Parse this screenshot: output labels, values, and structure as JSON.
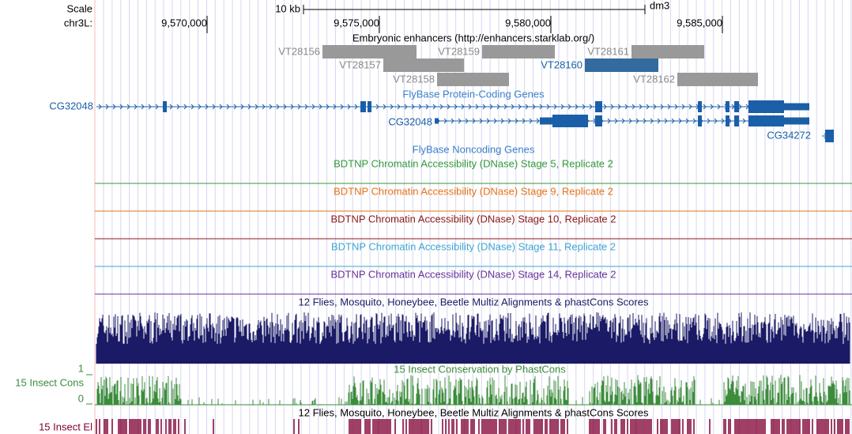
{
  "ruler": {
    "scale_label": "Scale",
    "scale_bar": "10 kb",
    "assembly": "dm3",
    "chrom_label": "chr3L:",
    "positions": [
      "9,570,000",
      "9,575,000",
      "9,580,000",
      "9,585,000"
    ]
  },
  "enhancers": {
    "title": "Embryonic enhancers (http://enhancers.starklab.org/)",
    "items": [
      "VT28156",
      "VT28157",
      "VT28158",
      "VT28159",
      "VT28160",
      "VT28161",
      "VT28162"
    ]
  },
  "genes": {
    "title": "FlyBase Protein-Coding Genes",
    "labels": [
      "CG32048",
      "CG32048",
      "CG34272"
    ]
  },
  "noncoding": {
    "title": "FlyBase Noncoding Genes"
  },
  "dnase": {
    "titles": [
      "BDTNP Chromatin Accessibility (DNase) Stage 5, Replicate 2",
      "BDTNP Chromatin Accessibility (DNase) Stage 9, Replicate 2",
      "BDTNP Chromatin Accessibility (DNase) Stage 10, Replicate 2",
      "BDTNP Chromatin Accessibility (DNase) Stage 11, Replicate 2",
      "BDTNP Chromatin Accessibility (DNase) Stage 14, Replicate 2"
    ]
  },
  "multiz": {
    "title": "12 Flies, Mosquito, Honeybee, Beetle Multiz Alignments & phastCons Scores"
  },
  "phastcons": {
    "title": "15 Insect Conservation by PhastCons",
    "side_label": "15 Insect Cons",
    "max_label": "1",
    "min_label": "0"
  },
  "elements": {
    "title": "12 Flies, Mosquito, Honeybee, Beetle Multiz Alignments & phastCons Scores",
    "side_label": "15 Insect El"
  }
}
